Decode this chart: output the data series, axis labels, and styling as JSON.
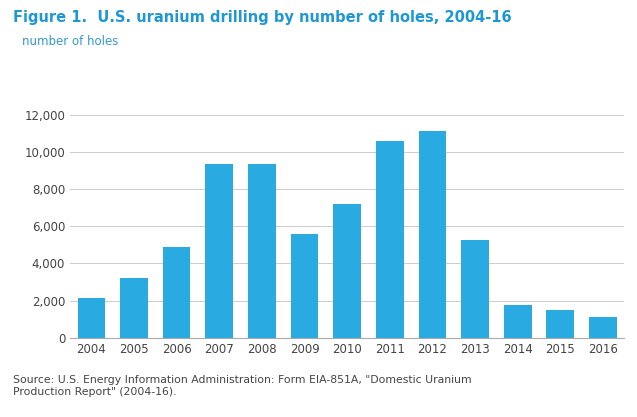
{
  "title": "Figure 1.  U.S. uranium drilling by number of holes, 2004-16",
  "ylabel": "number of holes",
  "years": [
    2004,
    2005,
    2006,
    2007,
    2008,
    2009,
    2010,
    2011,
    2012,
    2013,
    2014,
    2015,
    2016
  ],
  "values": [
    2150,
    3200,
    4900,
    9350,
    9350,
    5600,
    7200,
    10550,
    11100,
    5250,
    1750,
    1500,
    1100
  ],
  "bar_color": "#29ABE2",
  "ylim": [
    0,
    13000
  ],
  "yticks": [
    0,
    2000,
    4000,
    6000,
    8000,
    10000,
    12000
  ],
  "title_color": "#1F97D4",
  "ylabel_color": "#3399CC",
  "tick_color": "#444444",
  "source_text": "Source: U.S. Energy Information Administration: Form EIA-851A, \"Domestic Uranium\nProduction Report\" (2004-16).",
  "background_color": "#FFFFFF",
  "grid_color": "#CCCCCC",
  "title_fontsize": 10.5,
  "ylabel_fontsize": 8.5,
  "tick_fontsize": 8.5,
  "source_fontsize": 7.8
}
